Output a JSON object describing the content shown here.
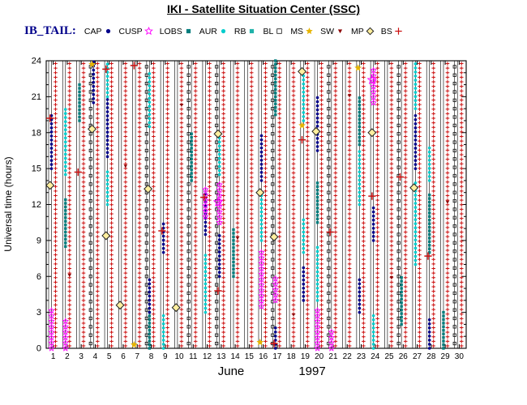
{
  "header": {
    "title": "IKI - Satellite Situation Center (SSC)",
    "dataset_label": "IB_TAIL:"
  },
  "legend": [
    {
      "name": "CAP",
      "symbol": "circle",
      "color": "#00008b",
      "size": 2.6
    },
    {
      "name": "CUSP",
      "symbol": "open-star",
      "color": "#ff00ff",
      "size": 4.5
    },
    {
      "name": "LOBS",
      "symbol": "square",
      "color": "#007d7d",
      "size": 2.6
    },
    {
      "name": "AUR",
      "symbol": "circle",
      "color": "#00cdcd",
      "size": 2.6
    },
    {
      "name": "RB",
      "symbol": "square",
      "color": "#20b2aa",
      "size": 2.6
    },
    {
      "name": "BL",
      "symbol": "open-square",
      "color": "#111111",
      "size": 2.8
    },
    {
      "name": "MS",
      "symbol": "star",
      "color": "#e6b400",
      "size": 4.5
    },
    {
      "name": "SW",
      "symbol": "triangle-down",
      "color": "#8b0000",
      "size": 2.6
    },
    {
      "name": "MP",
      "symbol": "diamond",
      "color": "#222222",
      "fill": "#ffef9e",
      "size": 4.2
    },
    {
      "name": "BS",
      "symbol": "plus",
      "color": "#cc1111",
      "size": 4.2
    }
  ],
  "chart_data": {
    "type": "scatter",
    "title": "IKI - Satellite Situation Center (SSC)",
    "xlabel_month": "June",
    "xlabel_year": "1997",
    "ylabel": "Universal time (hours)",
    "days": [
      1,
      2,
      3,
      4,
      5,
      6,
      7,
      8,
      9,
      10,
      11,
      12,
      13,
      14,
      15,
      16,
      17,
      18,
      19,
      20,
      21,
      22,
      23,
      24,
      25,
      26,
      27,
      28,
      29,
      30
    ],
    "yticks": [
      0,
      3,
      6,
      9,
      12,
      15,
      18,
      21,
      24
    ],
    "ylim": [
      0,
      24
    ],
    "series": [
      {
        "name": "BS",
        "marker": "plus",
        "color": "#cc1111",
        "size": 2.3,
        "stroke_width": 1,
        "step": 0.38,
        "lane": "red",
        "all_days": [
          0.2,
          23.8
        ]
      },
      {
        "name": "SW",
        "marker": "triangle-down",
        "color": "#8b0000",
        "size": 2.2,
        "lane": "red",
        "points": [
          [
            2,
            6.1
          ],
          [
            6,
            15.2
          ],
          [
            10,
            20.3
          ],
          [
            14,
            9.2
          ],
          [
            18,
            2.8
          ],
          [
            22,
            21.1
          ],
          [
            25,
            5.9
          ],
          [
            29,
            12.2
          ]
        ]
      },
      {
        "name": "BL",
        "marker": "open-square",
        "color": "#111111",
        "size": 1.7,
        "step": 0.7,
        "lane": "track_a",
        "runs": [
          [
            4,
            0.4,
            23.6
          ],
          [
            8,
            0.4,
            23.6
          ],
          [
            11,
            0.4,
            23.6
          ],
          [
            13,
            0.4,
            23.6
          ],
          [
            17,
            0.4,
            23.6
          ],
          [
            21,
            0.4,
            23.6
          ],
          [
            26,
            0.4,
            23.6
          ],
          [
            30,
            0.4,
            23.6
          ]
        ]
      },
      {
        "name": "LOBS",
        "marker": "square",
        "color": "#007d7d",
        "size": 1.7,
        "step": 0.3,
        "lane": "stack",
        "runs": [
          [
            2,
            8.5,
            12.5
          ],
          [
            3,
            19,
            22
          ],
          [
            8,
            0,
            3
          ],
          [
            11,
            14,
            18
          ],
          [
            14,
            6,
            10
          ],
          [
            17,
            19.5,
            24
          ],
          [
            20,
            10.5,
            14
          ],
          [
            23,
            17,
            21
          ],
          [
            26,
            2,
            6
          ],
          [
            28,
            8,
            13
          ],
          [
            29,
            0,
            3
          ]
        ]
      },
      {
        "name": "AUR",
        "marker": "circle",
        "color": "#00cdcd",
        "size": 1.8,
        "step": 0.34,
        "lane": "stack",
        "runs": [
          [
            2,
            14.5,
            20
          ],
          [
            5,
            12,
            15
          ],
          [
            5,
            21,
            24
          ],
          [
            8,
            18.5,
            23
          ],
          [
            9,
            0,
            3
          ],
          [
            12,
            3,
            8
          ],
          [
            13,
            14.5,
            18
          ],
          [
            16,
            9,
            13
          ],
          [
            19,
            8,
            11
          ],
          [
            19,
            19,
            23
          ],
          [
            20,
            4,
            8.5
          ],
          [
            23,
            12,
            16.5
          ],
          [
            24,
            0,
            3
          ],
          [
            27,
            7,
            14
          ],
          [
            27,
            20,
            24
          ],
          [
            28,
            14,
            17
          ]
        ]
      },
      {
        "name": "CAP",
        "marker": "circle",
        "color": "#00008b",
        "size": 1.8,
        "step": 0.34,
        "lane": "stack",
        "runs": [
          [
            1,
            15,
            19.5
          ],
          [
            4,
            20.5,
            24
          ],
          [
            5,
            16,
            21
          ],
          [
            8,
            3,
            6
          ],
          [
            9,
            8,
            10.5
          ],
          [
            12,
            9.5,
            13
          ],
          [
            13,
            6,
            9.5
          ],
          [
            16,
            14,
            18
          ],
          [
            17,
            0,
            2
          ],
          [
            19,
            4,
            7
          ],
          [
            20,
            16.5,
            21
          ],
          [
            23,
            3,
            6
          ],
          [
            24,
            9,
            12
          ],
          [
            27,
            15,
            19.5
          ],
          [
            28,
            0,
            2.5
          ]
        ]
      },
      {
        "name": "CUSP",
        "marker": "open-star",
        "color": "#ff00ff",
        "size": 3.4,
        "step": 0.45,
        "lane": "stack",
        "runs": [
          [
            1,
            0,
            3.5
          ],
          [
            2,
            0,
            2.5
          ],
          [
            12,
            11,
            13.5
          ],
          [
            13,
            10.5,
            14
          ],
          [
            16,
            3.5,
            8
          ],
          [
            17,
            4,
            6
          ],
          [
            20,
            0,
            3.5
          ],
          [
            21,
            0,
            1.5
          ],
          [
            24,
            20.5,
            23.5
          ]
        ]
      },
      {
        "name": "CUSP",
        "marker": "open-star",
        "color": "#ff00ff",
        "size": 5.5,
        "lane": "mid",
        "points": [
          [
            13,
            12.2
          ],
          [
            24,
            22.4
          ]
        ]
      },
      {
        "name": "MS",
        "marker": "star",
        "color": "#e6b400",
        "size": 4.6,
        "lane": "mid",
        "points": [
          [
            4,
            23.7
          ],
          [
            7,
            0.3
          ],
          [
            16,
            0.5
          ],
          [
            19,
            18.6
          ],
          [
            23,
            23.4
          ]
        ]
      },
      {
        "name": "MP",
        "marker": "diamond",
        "color": "#222222",
        "fill": "#ffef9e",
        "size": 4.8,
        "lane": "mid",
        "points": [
          [
            1,
            13.6
          ],
          [
            4,
            18.3
          ],
          [
            5,
            9.4
          ],
          [
            6,
            3.6
          ],
          [
            8,
            13.3
          ],
          [
            10,
            3.4
          ],
          [
            13,
            17.9
          ],
          [
            16,
            13.0
          ],
          [
            17,
            9.3
          ],
          [
            19,
            23.1
          ],
          [
            20,
            18.1
          ],
          [
            24,
            18.0
          ],
          [
            27,
            13.4
          ]
        ]
      },
      {
        "name": "BS",
        "marker": "plus",
        "color": "#cc1111",
        "size": 4.6,
        "stroke_width": 1.5,
        "lane": "mid",
        "points": [
          [
            1,
            19.2
          ],
          [
            3,
            14.7
          ],
          [
            5,
            23.3
          ],
          [
            7,
            23.6
          ],
          [
            9,
            9.8
          ],
          [
            12,
            12.6
          ],
          [
            13,
            4.8
          ],
          [
            17,
            0.4
          ],
          [
            19,
            17.4
          ],
          [
            21,
            9.7
          ],
          [
            24,
            12.7
          ],
          [
            26,
            14.3
          ],
          [
            28,
            7.7
          ]
        ]
      }
    ]
  }
}
